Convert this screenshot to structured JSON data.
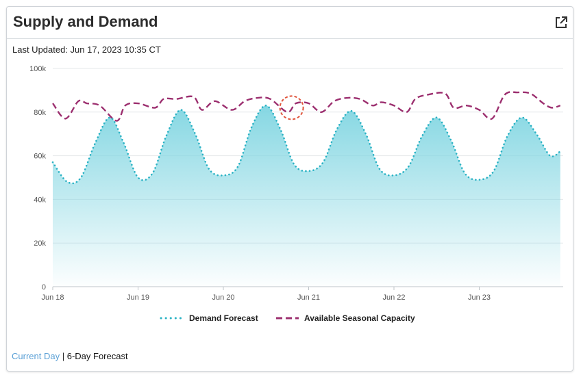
{
  "header": {
    "title": "Supply and Demand",
    "external_icon": "external-link-icon"
  },
  "last_updated": "Last Updated: Jun 17, 2023 10:35 CT",
  "footer": {
    "current_day": "Current Day",
    "separator": "|",
    "forecast": "6-Day Forecast"
  },
  "colors": {
    "demand": "#2ab2c4",
    "demand_fill_top": "#7fd5e1",
    "capacity": "#9c2f6f",
    "highlight": "#e0533a",
    "link": "#5aa0d6"
  },
  "chart_data": {
    "type": "area",
    "x_range": [
      0,
      6
    ],
    "x_unit": "days",
    "x_tick_labels": [
      "Jun 18",
      "Jun 19",
      "Jun 20",
      "Jun 21",
      "Jun 22",
      "Jun 23"
    ],
    "x_tick_values": [
      0,
      1,
      2,
      3,
      4,
      5
    ],
    "ylim": [
      0,
      100000
    ],
    "y_ticks": [
      0,
      20000,
      40000,
      60000,
      80000,
      100000
    ],
    "y_tick_labels": [
      "0",
      "20k",
      "40k",
      "60k",
      "80k",
      "100k"
    ],
    "grid": true,
    "legend_position": "bottom",
    "series": [
      {
        "name": "Demand Forecast",
        "style": "dotted-area",
        "x": [
          0,
          0.17,
          0.33,
          0.5,
          0.67,
          0.83,
          1,
          1.17,
          1.33,
          1.5,
          1.67,
          1.83,
          2,
          2.17,
          2.33,
          2.5,
          2.67,
          2.83,
          3,
          3.17,
          3.33,
          3.5,
          3.67,
          3.83,
          4,
          4.17,
          4.33,
          4.5,
          4.67,
          4.83,
          5,
          5.17,
          5.33,
          5.5,
          5.67,
          5.83,
          5.95
        ],
        "values": [
          57000,
          48000,
          50000,
          66000,
          77500,
          66000,
          50000,
          52000,
          69000,
          81000,
          70000,
          54000,
          51000,
          55000,
          73000,
          83000,
          72000,
          56000,
          53000,
          57000,
          72000,
          80500,
          70000,
          54000,
          51000,
          55000,
          69000,
          77500,
          67000,
          52000,
          49000,
          53000,
          69000,
          77500,
          70000,
          60000,
          62000
        ]
      },
      {
        "name": "Available Seasonal Capacity",
        "style": "dashed",
        "x": [
          0,
          0.15,
          0.3,
          0.4,
          0.55,
          0.75,
          0.85,
          1,
          1.2,
          1.3,
          1.45,
          1.65,
          1.75,
          1.9,
          2.1,
          2.25,
          2.4,
          2.55,
          2.75,
          2.85,
          3,
          3.15,
          3.3,
          3.45,
          3.6,
          3.75,
          3.85,
          4,
          4.15,
          4.25,
          4.4,
          4.6,
          4.7,
          4.85,
          5,
          5.15,
          5.3,
          5.45,
          5.6,
          5.75,
          5.85,
          5.95
        ],
        "values": [
          84000,
          77000,
          85000,
          84000,
          83000,
          76000,
          83000,
          84000,
          82000,
          86000,
          86000,
          87000,
          81000,
          85000,
          81000,
          85000,
          86500,
          86000,
          80000,
          84000,
          84000,
          80000,
          85000,
          86500,
          86000,
          83000,
          84500,
          83000,
          80000,
          86000,
          88000,
          88500,
          82000,
          83000,
          81000,
          77000,
          88000,
          89000,
          88500,
          84000,
          82000,
          83000
        ]
      }
    ],
    "annotations": [
      {
        "type": "circle",
        "x": 2.8,
        "y": 82000,
        "style": "dashed"
      }
    ]
  }
}
